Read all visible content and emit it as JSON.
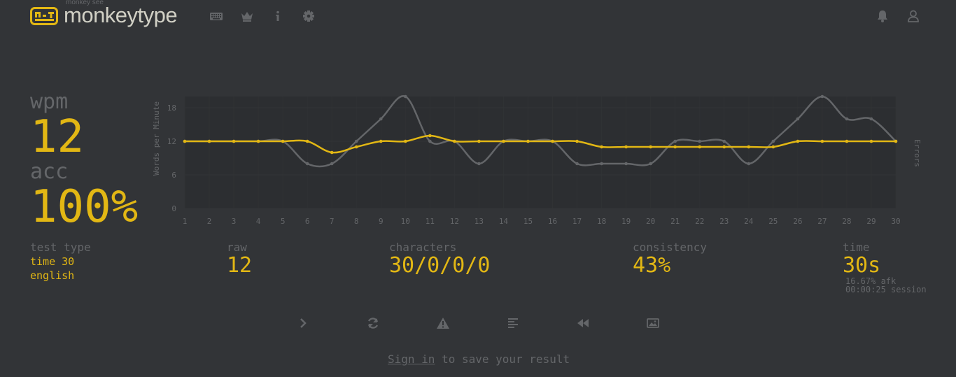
{
  "header": {
    "logo_subtitle": "monkey see",
    "logo_title": "monkeytype",
    "nav_icons": [
      "keyboard-icon",
      "crown-icon",
      "info-icon",
      "gear-icon"
    ],
    "account_icons": [
      "bell-icon",
      "user-icon"
    ]
  },
  "result": {
    "wpm_label": "wpm",
    "wpm_value": "12",
    "acc_label": "acc",
    "acc_value": "100%",
    "test_type_label": "test type",
    "test_type_mode": "time 30",
    "test_type_language": "english",
    "raw_label": "raw",
    "raw_value": "12",
    "characters_label": "characters",
    "characters_value": "30/0/0/0",
    "consistency_label": "consistency",
    "consistency_value": "43%",
    "time_label": "time",
    "time_value": "30s",
    "afk": "16.67% afk",
    "session": "00:00:25 session"
  },
  "actions": [
    "next-test-icon",
    "restart-icon",
    "report-icon",
    "word-history-icon",
    "replay-icon",
    "screenshot-icon"
  ],
  "footer": {
    "signin_link": "Sign in",
    "signin_rest": " to save your result"
  },
  "colors": {
    "background": "#323437",
    "sub": "#646669",
    "main": "#e2b714",
    "text": "#d1d0c5"
  },
  "chart_data": {
    "type": "line",
    "x": [
      1,
      2,
      3,
      4,
      5,
      6,
      7,
      8,
      9,
      10,
      11,
      12,
      13,
      14,
      15,
      16,
      17,
      18,
      19,
      20,
      21,
      22,
      23,
      24,
      25,
      26,
      27,
      28,
      29,
      30
    ],
    "series": [
      {
        "values": [
          12,
          12,
          12,
          12,
          12,
          8,
          8,
          12,
          16,
          20,
          12,
          12,
          8,
          12,
          12,
          12,
          8,
          8,
          8,
          8,
          12,
          12,
          12,
          8,
          12,
          16,
          20,
          16,
          16,
          12
        ]
      },
      {
        "values": [
          12,
          12,
          12,
          12,
          12,
          12,
          10,
          11,
          12,
          12,
          13,
          12,
          12,
          12,
          12,
          12,
          12,
          11,
          11,
          11,
          11,
          11,
          11,
          11,
          11,
          12,
          12,
          12,
          12,
          12
        ]
      }
    ],
    "ylabel": "Words per Minute",
    "y2label": "Errors",
    "ylim": [
      0,
      20
    ],
    "yticks": [
      0,
      6,
      12,
      18
    ],
    "grid": true
  }
}
